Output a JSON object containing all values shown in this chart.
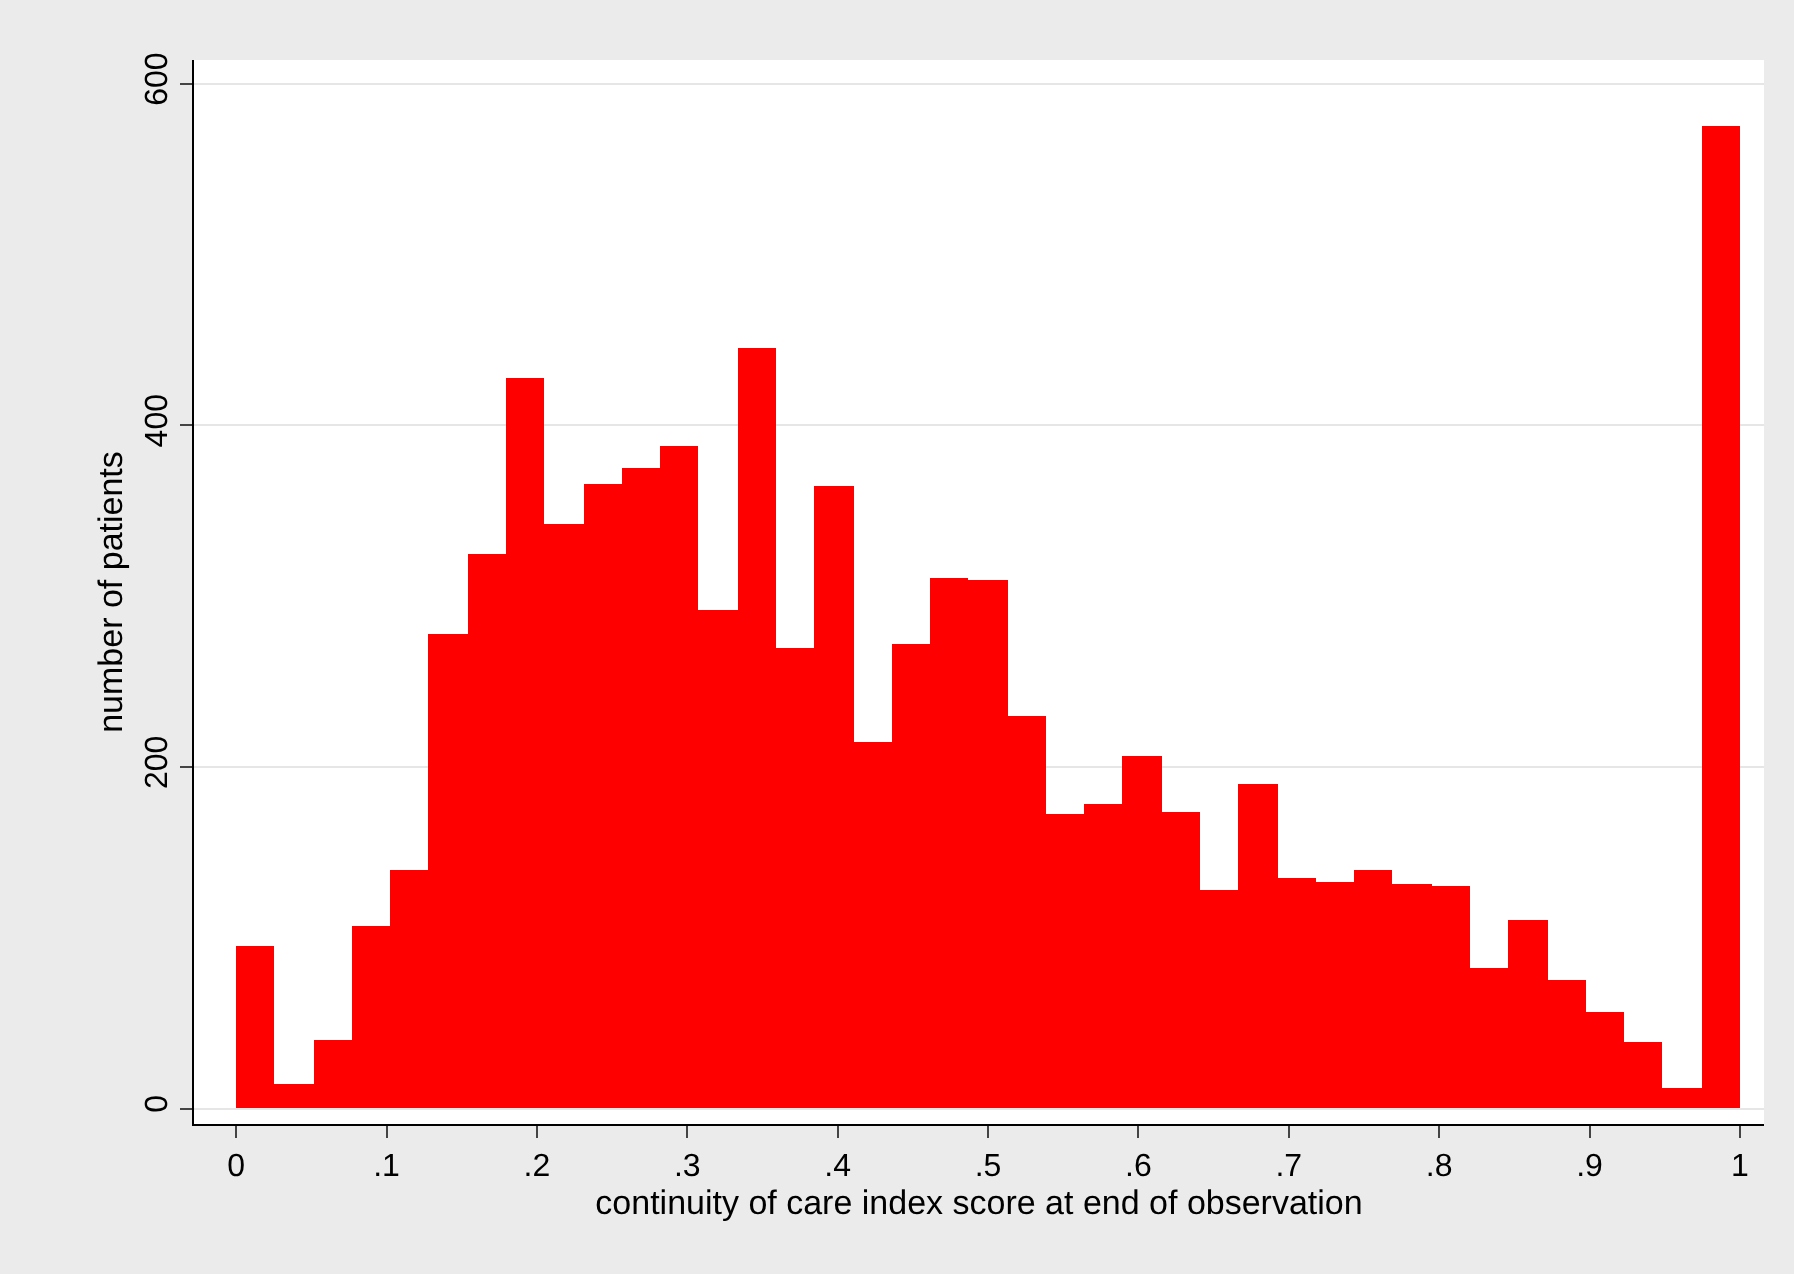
{
  "chart_data": {
    "type": "histogram",
    "xlabel": "continuity of care index score at end of observation",
    "ylabel": "number of patients",
    "bins": [
      0,
      0.0256,
      0.0513,
      0.0769,
      0.1026,
      0.1282,
      0.1538,
      0.1795,
      0.2051,
      0.2308,
      0.2564,
      0.2821,
      0.3077,
      0.3333,
      0.359,
      0.3846,
      0.4103,
      0.4359,
      0.4615,
      0.4872,
      0.5128,
      0.5385,
      0.5641,
      0.5897,
      0.6154,
      0.641,
      0.6667,
      0.6923,
      0.7179,
      0.7436,
      0.7692,
      0.7949,
      0.8205,
      0.8462,
      0.8718,
      0.8974,
      0.9231,
      0.9487,
      0.9744,
      1
    ],
    "values": [
      95,
      15,
      40,
      107,
      140,
      278,
      325,
      428,
      342,
      366,
      375,
      388,
      292,
      445,
      270,
      364,
      215,
      272,
      311,
      310,
      230,
      173,
      178,
      207,
      174,
      128,
      190,
      135,
      133,
      140,
      132,
      130,
      82,
      111,
      75,
      56,
      39,
      12,
      575
    ],
    "color": "#ff0000",
    "xlim": [
      -0.028,
      1.016
    ],
    "ylim": [
      -9,
      614
    ],
    "xticks": [
      0,
      {
        "value": 0.1,
        "label": ".1"
      },
      {
        "value": 0.2,
        "label": ".2"
      },
      {
        "value": 0.3,
        "label": ".3"
      },
      {
        "value": 0.4,
        "label": ".4"
      },
      {
        "value": 0.5,
        "label": ".5"
      },
      {
        "value": 0.6,
        "label": ".6"
      },
      {
        "value": 0.7,
        "label": ".7"
      },
      {
        "value": 0.8,
        "label": ".8"
      },
      {
        "value": 0.9,
        "label": ".9"
      },
      1
    ],
    "yticks": [
      0,
      200,
      400,
      600
    ],
    "grid": "y"
  }
}
